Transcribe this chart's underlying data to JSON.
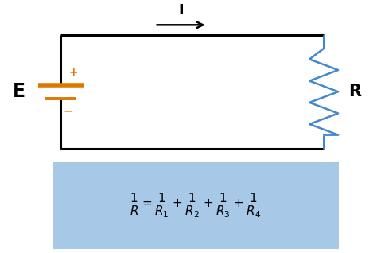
{
  "bg_color": "#ffffff",
  "circuit_color": "#000000",
  "battery_color": "#e07800",
  "resistor_color": "#4488cc",
  "label_E": "E",
  "label_R": "R",
  "label_I": "I",
  "formula": "$\\dfrac{1}{R}=\\dfrac{1}{R_1}+\\dfrac{1}{R_2}+\\dfrac{1}{R_3}+\\dfrac{1}{R_4}$",
  "formula_box_color": "#a8c8e8",
  "circuit_lw": 2.2,
  "battery_lw": 2.8,
  "resistor_lw": 1.8
}
